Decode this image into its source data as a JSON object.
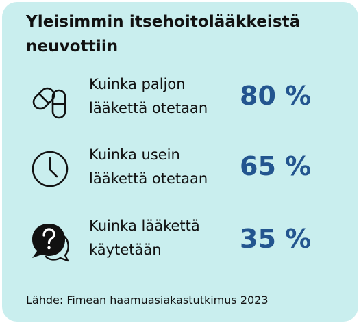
{
  "card": {
    "background_color": "#c9eeee",
    "accent_color": "#23558f"
  },
  "title": {
    "line1": "Yleisimmin itsehoitolääkkeistä",
    "line2": "neuvottiin"
  },
  "items": [
    {
      "icon": "pill-capsule-icon",
      "label_line1": "Kuinka paljon",
      "label_line2": "lääkettä otetaan",
      "value": "80 %"
    },
    {
      "icon": "clock-icon",
      "label_line1": "Kuinka usein",
      "label_line2": "lääkettä otetaan",
      "value": "65 %"
    },
    {
      "icon": "question-speech-bubble-icon",
      "label_line1": "Kuinka lääkettä",
      "label_line2": "käytetään",
      "value": "35 %"
    }
  ],
  "source": "Lähde: Fimean haamuasiakastutkimus 2023"
}
